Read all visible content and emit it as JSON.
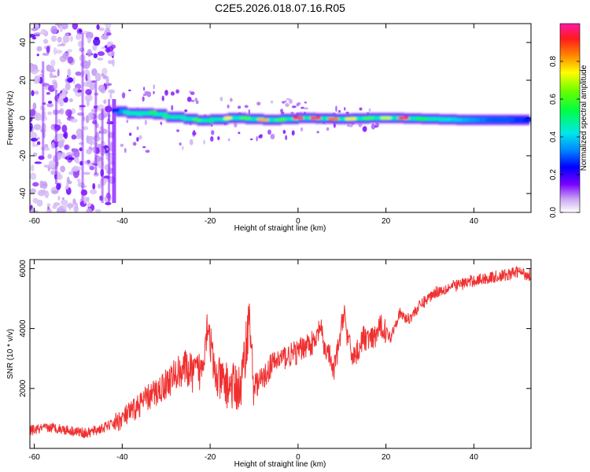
{
  "title": "C2E5.2026.018.07.16.R05",
  "colors": {
    "snr_line": "#f03030",
    "frame": "#000000"
  },
  "chart_data": [
    {
      "type": "heatmap",
      "title": "C2E5.2026.018.07.16.R05",
      "xlabel": "Height of straight line (km)",
      "ylabel": "Frequency (Hz)",
      "xlim": [
        -61,
        53
      ],
      "ylim": [
        -50,
        50
      ],
      "xticks": [
        -60,
        -40,
        -20,
        0,
        20,
        40
      ],
      "yticks": [
        -40,
        -20,
        0,
        20,
        40
      ],
      "xtick_labels": [
        "-60",
        "-40",
        "-20",
        "0",
        "20",
        "40"
      ],
      "ytick_labels": [
        "-40",
        "-20",
        "0",
        "20",
        "40"
      ],
      "colorbar": {
        "label": "Normalized spectral amplitude",
        "range": [
          0.0,
          1.0
        ],
        "ticks": [
          0.0,
          0.2,
          0.4,
          0.6,
          0.8
        ],
        "tick_labels": [
          "0.0",
          "0.2",
          "0.4",
          "0.6",
          "0.8"
        ]
      },
      "ridge": [
        {
          "x": -41.5,
          "freq": 4,
          "amp": 0.25
        },
        {
          "x": -39,
          "freq": 3,
          "amp": 0.45
        },
        {
          "x": -36,
          "freq": 2,
          "amp": 0.45
        },
        {
          "x": -33,
          "freq": 3,
          "amp": 0.55
        },
        {
          "x": -30,
          "freq": 1,
          "amp": 0.5
        },
        {
          "x": -26,
          "freq": 0,
          "amp": 0.45
        },
        {
          "x": -23,
          "freq": -1,
          "amp": 0.6
        },
        {
          "x": -20,
          "freq": -1.5,
          "amp": 0.5
        },
        {
          "x": -16,
          "freq": 0,
          "amp": 0.75
        },
        {
          "x": -12,
          "freq": 0,
          "amp": 0.6
        },
        {
          "x": -8,
          "freq": -1,
          "amp": 0.8
        },
        {
          "x": -4,
          "freq": -1,
          "amp": 0.6
        },
        {
          "x": 0,
          "freq": 0,
          "amp": 0.95
        },
        {
          "x": 4,
          "freq": 0,
          "amp": 0.9
        },
        {
          "x": 8,
          "freq": -0.5,
          "amp": 0.85
        },
        {
          "x": 12,
          "freq": -0.5,
          "amp": 0.75
        },
        {
          "x": 16,
          "freq": 0,
          "amp": 0.6
        },
        {
          "x": 20,
          "freq": 0,
          "amp": 0.7
        },
        {
          "x": 24,
          "freq": 0,
          "amp": 0.95
        },
        {
          "x": 28,
          "freq": -0.5,
          "amp": 0.55
        },
        {
          "x": 32,
          "freq": -0.5,
          "amp": 0.45
        },
        {
          "x": 36,
          "freq": -1,
          "amp": 0.4
        },
        {
          "x": 40,
          "freq": -1,
          "amp": 0.35
        },
        {
          "x": 44,
          "freq": -1,
          "amp": 0.3
        },
        {
          "x": 48,
          "freq": -1,
          "amp": 0.3
        },
        {
          "x": 52.5,
          "freq": -1,
          "amp": 0.25
        }
      ]
    },
    {
      "type": "line",
      "xlabel": "Height of straight line (km)",
      "ylabel": "SNR (10 * v/v)",
      "xlim": [
        -61,
        53
      ],
      "ylim": [
        0,
        6300
      ],
      "xticks": [
        -60,
        -40,
        -20,
        0,
        20,
        40
      ],
      "yticks": [
        2000,
        4000,
        6000
      ],
      "xtick_labels": [
        "-60",
        "-40",
        "-20",
        "0",
        "20",
        "40"
      ],
      "ytick_labels": [
        "2000",
        "4000",
        "6000"
      ],
      "series": [
        {
          "name": "SNR",
          "x": [
            -61,
            -56,
            -52,
            -48,
            -44,
            -41,
            -38,
            -35,
            -32,
            -29,
            -26,
            -24,
            -22,
            -20.5,
            -19,
            -16,
            -13,
            -11,
            -10.5,
            -10,
            -8,
            -6,
            -4,
            -2,
            0,
            2,
            4,
            5,
            6,
            7,
            8,
            9.5,
            10.5,
            11,
            12,
            13,
            15,
            17,
            19,
            21,
            23,
            25,
            28,
            31,
            35,
            40,
            44,
            48,
            50,
            52,
            53
          ],
          "y": [
            600,
            700,
            600,
            500,
            700,
            900,
            1200,
            1600,
            1900,
            2300,
            2700,
            2500,
            2600,
            4300,
            2400,
            2100,
            2000,
            4500,
            2800,
            2100,
            2300,
            2800,
            3000,
            3100,
            3200,
            3500,
            3500,
            4100,
            3300,
            3200,
            2500,
            3600,
            4700,
            3900,
            3200,
            3100,
            3700,
            3600,
            4100,
            3700,
            4500,
            4300,
            4800,
            5200,
            5400,
            5600,
            5700,
            5800,
            5900,
            5800,
            5800
          ]
        }
      ]
    }
  ]
}
